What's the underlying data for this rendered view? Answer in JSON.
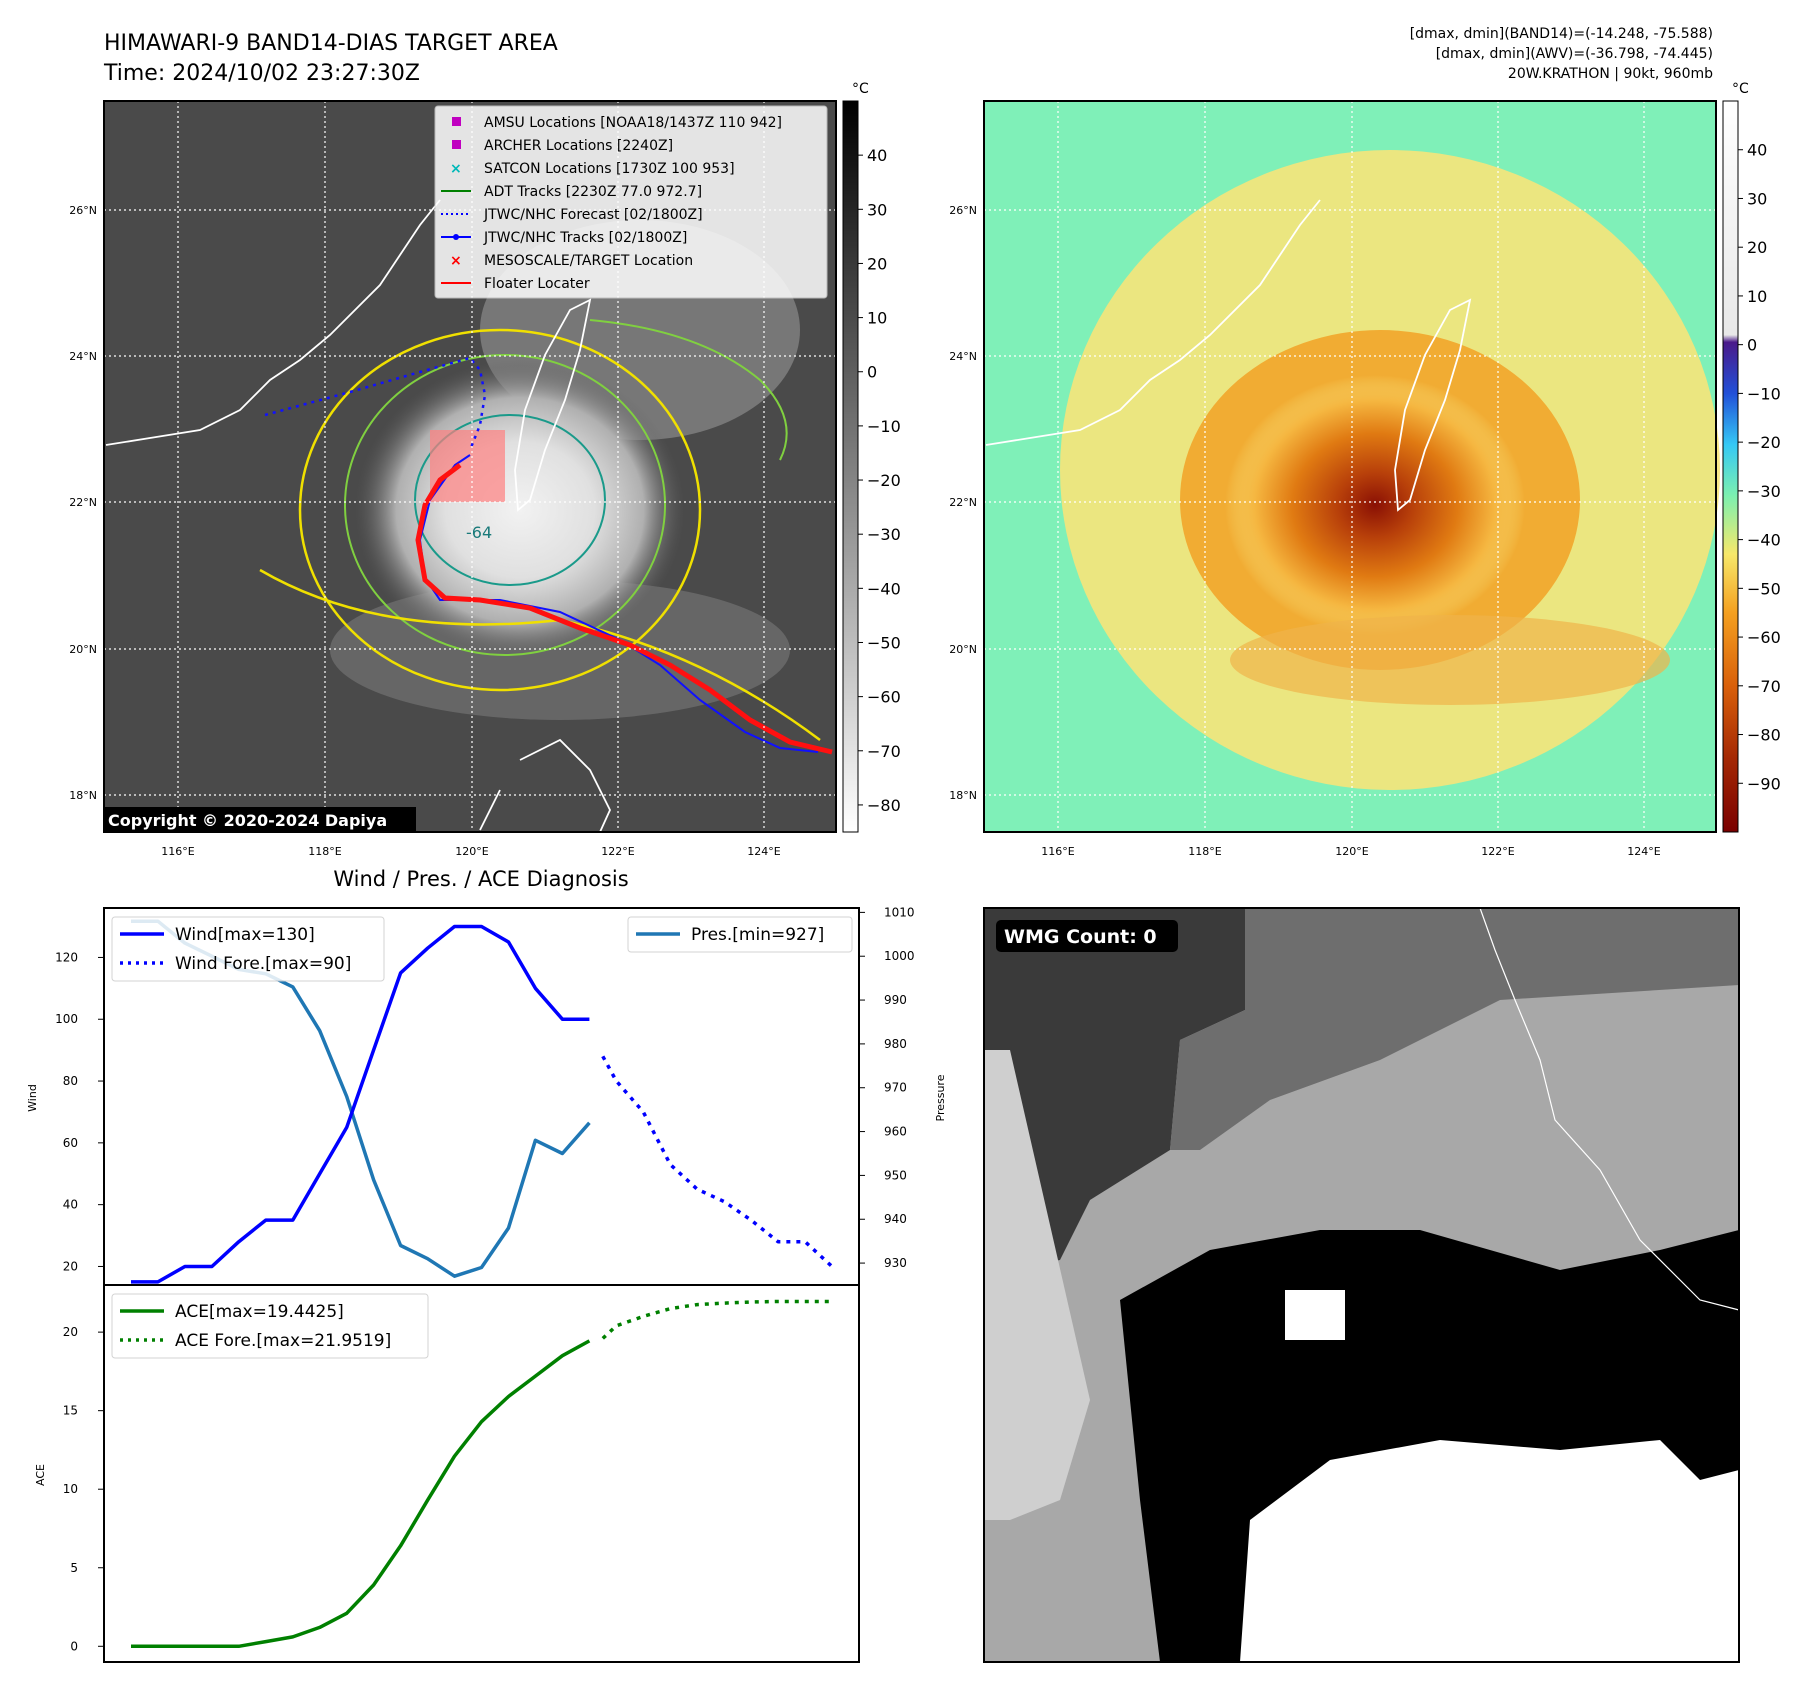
{
  "header": {
    "title_line1": "HIMAWARI-9 BAND14-DIAS TARGET AREA",
    "title_line2": "Time: 2024/10/02 23:27:30Z",
    "dmax_band14": "[dmax, dmin](BAND14)=(-14.248, -75.588)",
    "dmax_awv": "[dmax, dmin](AWV)=(-36.798, -74.445)",
    "storm_info": "20W.KRATHON | 90kt, 960mb"
  },
  "map_axes": {
    "lat_labels": [
      "26°N",
      "24°N",
      "22°N",
      "20°N",
      "18°N"
    ],
    "lon_labels": [
      "116°E",
      "118°E",
      "120°E",
      "122°E",
      "124°E"
    ],
    "copyright": "Copyright © 2020-2024 Dapiya",
    "contour_label": "-64"
  },
  "legend": [
    {
      "label": "AMSU Locations [NOAA18/1437Z 110 942]",
      "color": "#c000c0",
      "marker": "square"
    },
    {
      "label": "ARCHER Locations [2240Z]",
      "color": "#c000c0",
      "marker": "square"
    },
    {
      "label": "SATCON Locations [1730Z 100 953]",
      "color": "#00b8b8",
      "marker": "x"
    },
    {
      "label": "ADT Tracks [2230Z 77.0 972.7]",
      "color": "#008000",
      "marker": "line"
    },
    {
      "label": "JTWC/NHC Forecast [02/1800Z]",
      "color": "#0000ff",
      "marker": "dotted"
    },
    {
      "label": "JTWC/NHC Tracks [02/1800Z]",
      "color": "#0000ff",
      "marker": "line-dot"
    },
    {
      "label": "MESOSCALE/TARGET Location",
      "color": "#ff0000",
      "marker": "x"
    },
    {
      "label": "Floater Locater",
      "color": "#ff0000",
      "marker": "line"
    }
  ],
  "colorbar_gray": {
    "unit": "°C",
    "ticks": [
      40,
      30,
      20,
      10,
      0,
      -10,
      -20,
      -30,
      -40,
      -50,
      -60,
      -70,
      -80
    ],
    "range": [
      50,
      -85
    ]
  },
  "colorbar_awv": {
    "unit": "°C",
    "ticks": [
      40,
      30,
      20,
      10,
      0,
      -10,
      -20,
      -30,
      -40,
      -50,
      -60,
      -70,
      -80,
      -90
    ],
    "range": [
      50,
      -100
    ]
  },
  "diagnosis": {
    "title": "Wind / Pres. / ACE Diagnosis",
    "wind_ylabel": "Wind",
    "pres_ylabel": "Pressure",
    "ace_ylabel": "ACE",
    "legend_wind": "Wind[max=130]",
    "legend_wind_fore": "Wind Fore.[max=90]",
    "legend_pres": "Pres.[min=927]",
    "legend_ace": "ACE[max=19.4425]",
    "legend_ace_fore": "ACE Fore.[max=21.9519]"
  },
  "wmg": {
    "label": "WMG Count: 0"
  },
  "colors": {
    "wind": "#0000ff",
    "pressure": "#1f77b4",
    "ace": "#008000",
    "track": "#ff0000"
  },
  "chart_data": [
    {
      "type": "line",
      "title": "Wind / Pres. / ACE Diagnosis",
      "ylabel": "Wind",
      "ylim": [
        14,
        136
      ],
      "yticks": [
        20,
        40,
        60,
        80,
        100,
        120
      ],
      "series": [
        {
          "name": "Wind[max=130]",
          "style": "solid",
          "x": [
            0,
            1,
            2,
            3,
            4,
            5,
            6,
            7,
            8,
            9,
            10,
            11,
            12,
            13,
            14,
            15,
            16,
            17
          ],
          "values": [
            15,
            15,
            20,
            20,
            28,
            35,
            35,
            50,
            65,
            90,
            115,
            123,
            130,
            130,
            125,
            110,
            100,
            100
          ]
        },
        {
          "name": "Wind Fore.[max=90]",
          "style": "dotted",
          "x": [
            17.5,
            18,
            19,
            20,
            21,
            22,
            23,
            24,
            25,
            26
          ],
          "values": [
            88,
            80,
            70,
            53,
            45,
            41,
            35,
            28,
            28,
            20
          ]
        }
      ]
    },
    {
      "type": "line",
      "ylabel": "Pressure",
      "ylim": [
        925,
        1011
      ],
      "yticks": [
        930,
        940,
        950,
        960,
        970,
        980,
        990,
        1000,
        1010
      ],
      "series": [
        {
          "name": "Pres.[min=927]",
          "style": "solid",
          "x": [
            0,
            1,
            2,
            3,
            4,
            5,
            6,
            7,
            8,
            9,
            10,
            11,
            12,
            13,
            14,
            15,
            16,
            17
          ],
          "values": [
            1008,
            1008,
            1003,
            1000,
            997,
            996,
            993,
            983,
            968,
            949,
            934,
            931,
            927,
            929,
            938,
            958,
            955,
            962
          ]
        }
      ]
    },
    {
      "type": "line",
      "ylabel": "ACE",
      "ylim": [
        -1,
        23
      ],
      "yticks": [
        0,
        5,
        10,
        15,
        20
      ],
      "series": [
        {
          "name": "ACE[max=19.4425]",
          "style": "solid",
          "x": [
            0,
            1,
            2,
            3,
            4,
            5,
            6,
            7,
            8,
            9,
            10,
            11,
            12,
            13,
            14,
            15,
            16,
            17
          ],
          "values": [
            0,
            0,
            0,
            0,
            0,
            0.3,
            0.6,
            1.2,
            2.1,
            3.9,
            6.4,
            9.3,
            12.1,
            14.3,
            15.9,
            17.2,
            18.5,
            19.44
          ]
        },
        {
          "name": "ACE Fore.[max=21.9519]",
          "style": "dotted",
          "x": [
            17.5,
            18,
            19,
            20,
            21,
            22,
            23,
            24,
            25,
            26
          ],
          "values": [
            19.6,
            20.4,
            21.0,
            21.5,
            21.75,
            21.85,
            21.92,
            21.95,
            21.95,
            21.95
          ]
        }
      ]
    }
  ]
}
